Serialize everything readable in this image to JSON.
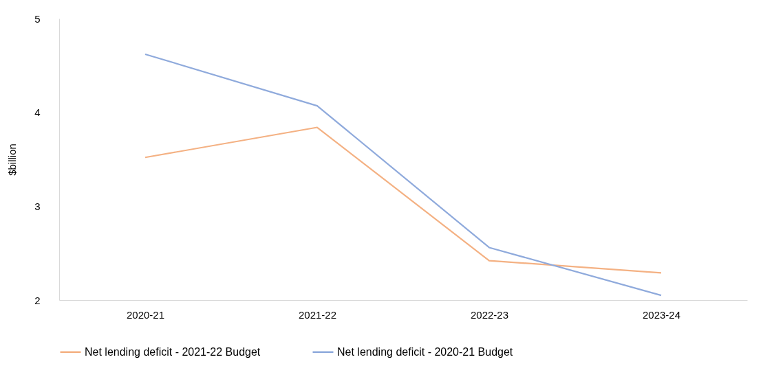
{
  "chart_data": {
    "type": "line",
    "ylabel": "$billion",
    "categories": [
      "2020-21",
      "2021-22",
      "2022-23",
      "2023-24"
    ],
    "series": [
      {
        "name": "Net lending deficit - 2021-22 Budget",
        "color": "#f4b183",
        "values": [
          3.52,
          3.84,
          2.42,
          2.29
        ]
      },
      {
        "name": "Net lending deficit - 2020-21 Budget",
        "color": "#8faadc",
        "values": [
          4.62,
          4.07,
          2.56,
          2.05
        ]
      }
    ],
    "ylim": [
      2,
      5
    ],
    "yticks": [
      2,
      3,
      4,
      5
    ],
    "grid": false,
    "legend": "bottom",
    "marker": "none",
    "line_style": "solid"
  }
}
